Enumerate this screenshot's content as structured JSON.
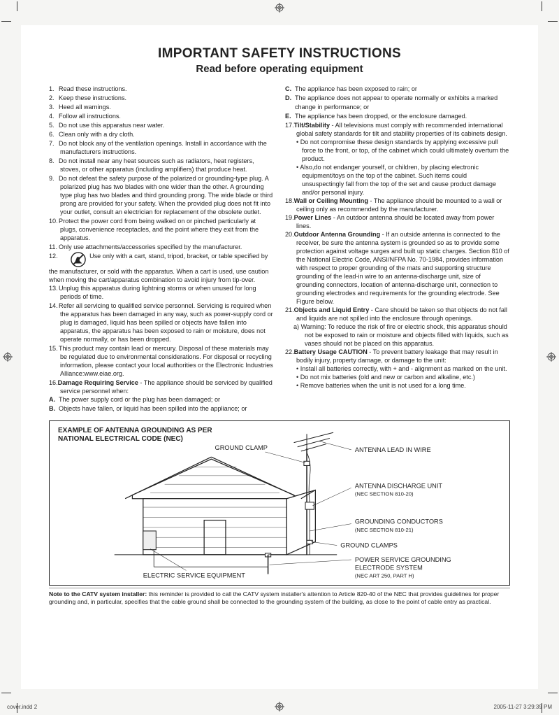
{
  "title": "IMPORTANT SAFETY INSTRUCTIONS",
  "subtitle": "Read before operating equipment",
  "left_items": [
    {
      "n": "1.",
      "t": "Read these instructions."
    },
    {
      "n": "2.",
      "t": "Keep these instructions."
    },
    {
      "n": "3.",
      "t": "Heed all warnings."
    },
    {
      "n": "4.",
      "t": "Follow all instructions."
    },
    {
      "n": "5.",
      "t": "Do not use this apparatus near water."
    },
    {
      "n": "6.",
      "t": "Clean only with a dry cloth."
    },
    {
      "n": "7.",
      "t": "Do not block any of the ventilation openings. Install in accordance with the manufacturers instructions."
    },
    {
      "n": "8.",
      "t": "Do not install near any heat sources such as radiators, heat registers, stoves, or other apparatus (including amplifiers) that produce heat."
    },
    {
      "n": "9.",
      "t": "Do not defeat the safety purpose of the polarized or grounding-type plug. A polarized plug has two blades with one wider than the other. A grounding type plug has two blades and third grounding prong. The wide blade or third prong are provided for your safety. When the provided plug does not fit into your outlet, consult an electrician for replacement of the obsolete outlet."
    },
    {
      "n": "10.",
      "t": "Protect the power cord from being walked on or pinched particularly at plugs, convenience receptacles, and the point where they exit from the apparatus."
    },
    {
      "n": "11.",
      "t": "Only use attachments/accessories specified by the manufacturer."
    }
  ],
  "item12": {
    "n": "12.",
    "t": "Use only with a cart, stand, tripod, bracket, or table specified by the manufacturer, or sold with the apparatus. When a cart is used, use caution when moving the cart/apparatus combination to avoid injury from tip-over."
  },
  "left_items_b": [
    {
      "n": "13.",
      "t": "Unplug this apparatus during lightning storms or when unused for long periods of time."
    },
    {
      "n": "14.",
      "t": "Refer all servicing to qualified service personnel. Servicing is required when the apparatus has been damaged in any way, such as power-supply cord or plug is damaged, liquid has been spilled or objects have fallen into apparatus, the apparatus has been exposed to rain or moisture, does not operate normally, or has been dropped."
    },
    {
      "n": "15.",
      "t": "This product may contain lead or mercury. Disposal of these materials may be regulated due to environmental considerations. For disposal or recycling information, please contact your local authorities or the Electronic Industries Alliance:www.eiae.org."
    }
  ],
  "item16": {
    "n": "16.",
    "b": "Damage Requiring Service",
    "t": " - The appliance should be serviced by qualified service personnel when:"
  },
  "left_letters": [
    {
      "n": "A.",
      "t": "The power supply cord or the plug has been damaged; or"
    },
    {
      "n": "B.",
      "t": "Objects have fallen, or liquid has been spilled into the appliance; or"
    }
  ],
  "right_letters": [
    {
      "n": "C.",
      "t": "The appliance has been exposed to rain; or"
    },
    {
      "n": "D.",
      "t": "The appliance does not appear to operate normally or exhibits a marked"
    },
    {
      "n": "",
      "t": "change in performance; or"
    },
    {
      "n": "E.",
      "t": "The appliance has been dropped, or the enclosure damaged."
    }
  ],
  "item17": {
    "n": "17.",
    "b": "Tilt/Stability",
    "t": " - All televisions must comply with recommended international global safety standards for tilt and stability properties of its cabinets design."
  },
  "item17_bullets": [
    "Do not compromise these design standards by applying excessive pull force to the front, or top, of the cabinet which could ultimately overturn the product.",
    "Also,do not endanger yourself, or children, by placing electronic equipment/toys on the top of the cabinet. Such items could unsuspectingly fall from the top of the set and cause product damage and/or personal injury."
  ],
  "item18": {
    "n": "18.",
    "b": "Wall or Ceiling Mounting",
    "t": " - The appliance should be mounted to a wall or ceiling only as recommended by the manufacturer."
  },
  "item19": {
    "n": "19.",
    "b": "Power Lines",
    "t": " - An outdoor antenna should be located away from power lines."
  },
  "item20": {
    "n": "20.",
    "b": "Outdoor Antenna Grounding",
    "t": " - If an outside antenna is connected to the receiver, be sure the antenna system is grounded so as to provide some protection against voltage surges and built up static charges. Section 810 of the National Electric Code, ANSI/NFPA No. 70-1984, provides information with respect to proper grounding of the mats and supporting structure grounding of the lead-in wire to an antenna-discharge unit, size of grounding connectors, location of antenna-discharge unit, connection to grounding electrodes and requirements for the grounding electrode. See Figure below."
  },
  "item21": {
    "n": "21.",
    "b": "Objects and Liquid Entry",
    "t": " - Care should be taken so that objects do not fall and liquids are not spilled into the enclosure through openings."
  },
  "item21a": "a) Warning: To reduce the risk of fire or electric shock, this apparatus should not be exposed to rain or moisture and objects filled with liquids, such as vases should not be placed on this apparatus.",
  "item22": {
    "n": "22.",
    "b": "Battery Usage CAUTION",
    "t": " - To prevent battery leakage that may result in bodily injury, property damage, or damage to the unit:"
  },
  "item22_bullets": [
    "Install all batteries correctly, with + and - alignment as marked on the unit.",
    "Do not mix batteries (old and new or carbon and alkaline, etc.)",
    "Remove batteries when the unit is not used for a long time."
  ],
  "figure": {
    "title1": "EXAMPLE OF ANTENNA GROUNDING AS PER",
    "title2": "NATIONAL ELECTRICAL CODE (NEC)",
    "labels": {
      "ground_clamp": "GROUND CLAMP",
      "antenna_lead": "ANTENNA LEAD IN WIRE",
      "discharge_unit": "ANTENNA DISCHARGE UNIT",
      "discharge_unit_sub": "(NEC SECTION 810-20)",
      "grounding_conductors": "GROUNDING CONDUCTORS",
      "grounding_conductors_sub": "(NEC SECTION 810-21)",
      "ground_clamps": "GROUND CLAMPS",
      "power_service": "POWER SERVICE GROUNDING",
      "electrode_system": "ELECTRODE SYSTEM",
      "electrode_sub": "(NEC ART 250, PART H)",
      "electric_service": "ELECTRIC SERVICE EQUIPMENT"
    }
  },
  "note_bold": "Note to the CATV system installer:",
  "note_text": " this reminder is provided to call the CATV system installer's attention to Article 820-40 of the NEC that provides guidelines for proper grounding and, in particular, specifies that the cable ground shall be connected to the grounding system of the building, as close to the point of cable entry as practical.",
  "footer_left": "cover.indd   2",
  "footer_right": "2005-11-27   3:29:39 PM"
}
